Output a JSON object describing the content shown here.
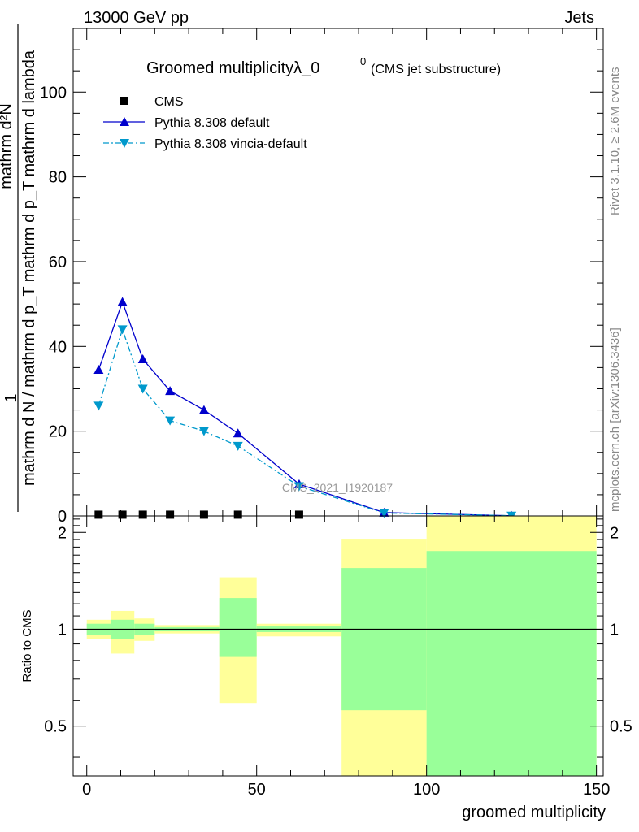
{
  "header": {
    "left": "13000 GeV pp",
    "right": "Jets"
  },
  "side_labels": {
    "rivet": "Rivet 3.1.10, ≥ 2.6M events",
    "mcplots": "mcplots.cern.ch [arXiv:1306.3436]"
  },
  "chart_data": [
    {
      "type": "line",
      "title": "Groomed multiplicityλ_0",
      "title_sup": "0",
      "subtitle": "(CMS jet substructure)",
      "watermark": "CMS_2021_I1920187",
      "ylabel_numerator": "mathrm d²N",
      "ylabel_numerator_prefix": "1",
      "ylabel_denominator": "mathrm d N / mathrm d p_T mathrm d p_T mathrm d lambda",
      "xlim": [
        -4,
        152
      ],
      "ylim": [
        0,
        115
      ],
      "yticks": [
        0,
        20,
        40,
        60,
        80,
        100
      ],
      "xticks": [
        0,
        50,
        100,
        150
      ],
      "legend_position": "top-left",
      "series": [
        {
          "name": "CMS",
          "color": "#000000",
          "marker": "square",
          "x": [
            3.5,
            10.5,
            16.5,
            24.5,
            34.5,
            44.5,
            62.5
          ],
          "values": [
            0.3,
            0.3,
            0.3,
            0.3,
            0.3,
            0.3,
            0.3
          ]
        },
        {
          "name": "Pythia 8.308 default",
          "color": "#0000cc",
          "marker": "triangle-up",
          "dash": "solid",
          "x": [
            3.5,
            10.5,
            16.5,
            24.5,
            34.5,
            44.5,
            62.5,
            87.5,
            125
          ],
          "values": [
            34.5,
            50.5,
            37,
            29.5,
            25,
            19.5,
            7.5,
            0.8,
            0.05
          ]
        },
        {
          "name": "Pythia 8.308 vincia-default",
          "color": "#0099cc",
          "marker": "triangle-down",
          "dash": "dashdot",
          "x": [
            3.5,
            10.5,
            16.5,
            24.5,
            34.5,
            44.5,
            62.5,
            87.5,
            125
          ],
          "values": [
            26,
            44,
            30,
            22.5,
            20,
            16.5,
            7,
            0.7,
            0.05
          ]
        }
      ]
    },
    {
      "type": "bar",
      "ylabel": "Ratio to CMS",
      "xlabel": "groomed multiplicity",
      "xlim": [
        -4,
        152
      ],
      "ylim": [
        0.35,
        2.25
      ],
      "yticks": [
        0.5,
        1,
        2
      ],
      "ytick_labels": [
        "0.5",
        "1",
        "2"
      ],
      "xticks": [
        0,
        50,
        100,
        150
      ],
      "reference_line": 1,
      "bands": [
        {
          "x0": 0,
          "x1": 7,
          "yellow": [
            0.93,
            1.07
          ],
          "green": [
            0.96,
            1.04
          ]
        },
        {
          "x0": 7,
          "x1": 14,
          "yellow": [
            0.84,
            1.14
          ],
          "green": [
            0.93,
            1.07
          ]
        },
        {
          "x0": 14,
          "x1": 20,
          "yellow": [
            0.92,
            1.08
          ],
          "green": [
            0.96,
            1.04
          ]
        },
        {
          "x0": 20,
          "x1": 39,
          "yellow": [
            0.97,
            1.03
          ],
          "green": [
            0.985,
            1.015
          ]
        },
        {
          "x0": 39,
          "x1": 50,
          "yellow": [
            0.59,
            1.45
          ],
          "green": [
            0.82,
            1.25
          ]
        },
        {
          "x0": 50,
          "x1": 75,
          "yellow": [
            0.95,
            1.04
          ],
          "green": [
            0.98,
            1.02
          ]
        },
        {
          "x0": 75,
          "x1": 100,
          "yellow": [
            0.35,
            1.9
          ],
          "green": [
            0.56,
            1.55
          ]
        },
        {
          "x0": 100,
          "x1": 150,
          "yellow": [
            0.35,
            2.25
          ],
          "green": [
            0.35,
            1.75
          ]
        }
      ],
      "colors": {
        "yellow": "#ffff99",
        "green": "#99ff99"
      }
    }
  ]
}
